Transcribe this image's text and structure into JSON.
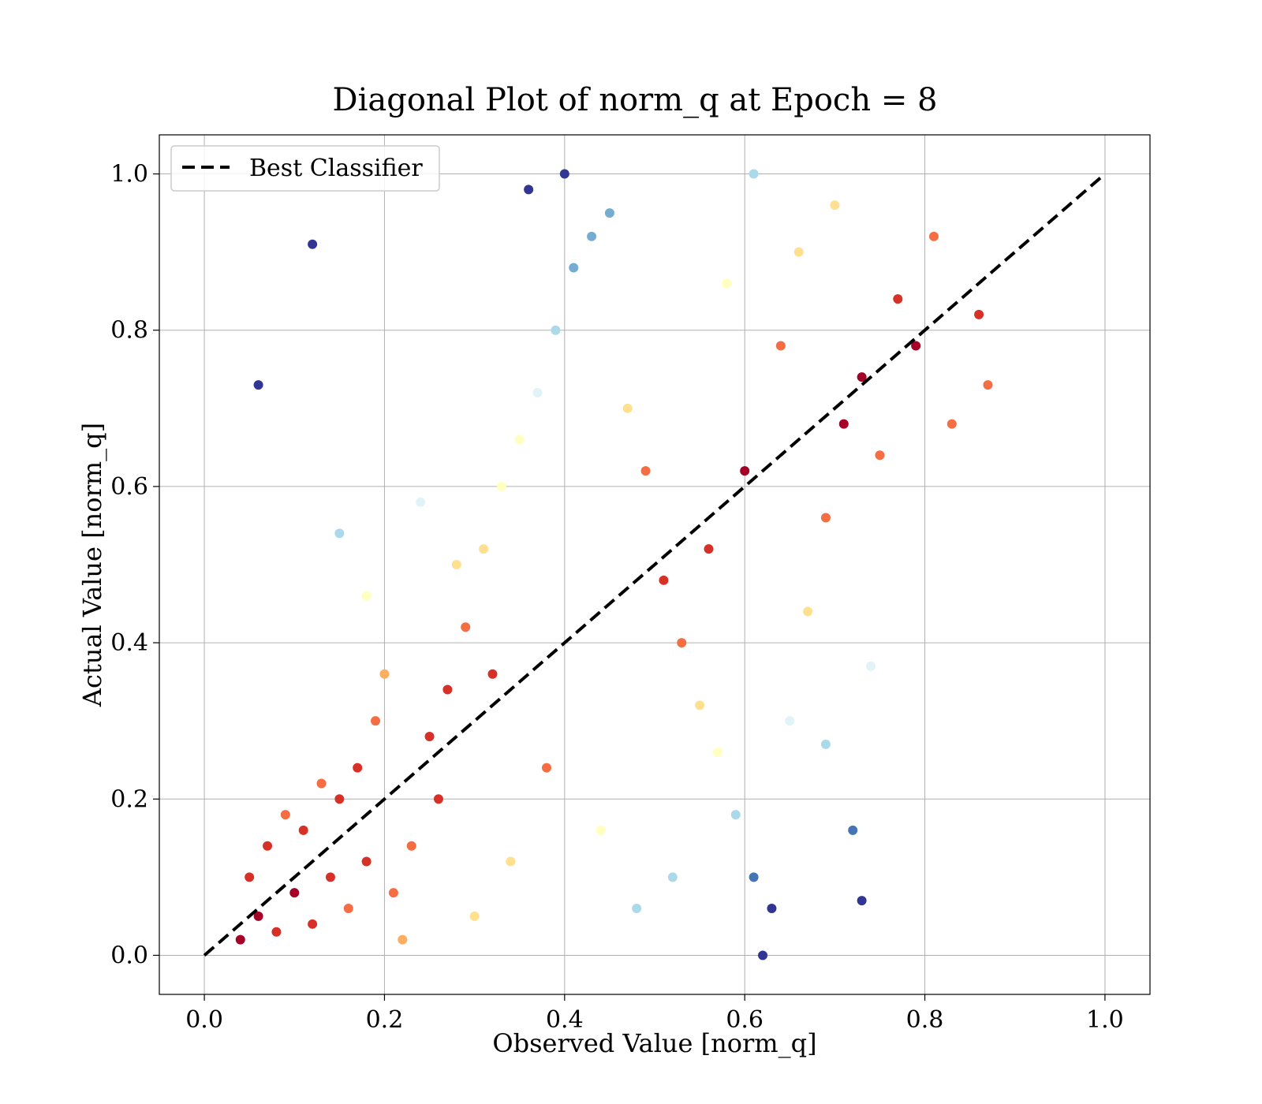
{
  "chart_data": {
    "type": "scatter",
    "title": "Diagonal Plot of norm_q at Epoch = 8",
    "xlabel": "Observed Value [norm_q]",
    "ylabel": "Actual Value [norm_q]",
    "xlim": [
      -0.05,
      1.05
    ],
    "ylim": [
      -0.05,
      1.05
    ],
    "xticks": [
      0.0,
      0.2,
      0.4,
      0.6,
      0.8,
      1.0
    ],
    "yticks": [
      0.0,
      0.2,
      0.4,
      0.6,
      0.8,
      1.0
    ],
    "xtick_labels": [
      "0.0",
      "0.2",
      "0.4",
      "0.6",
      "0.8",
      "1.0"
    ],
    "ytick_labels": [
      "0.0",
      "0.2",
      "0.4",
      "0.6",
      "0.8",
      "1.0"
    ],
    "grid": true,
    "legend_position": "top-left",
    "reference_line": {
      "name": "Best Classifier",
      "x": [
        0.0,
        1.0
      ],
      "y": [
        0.0,
        1.0
      ],
      "style": "dashed",
      "color": "#000000"
    },
    "colormap": [
      "#a50026",
      "#d73027",
      "#f46d43",
      "#fdae61",
      "#fee090",
      "#ffffbf",
      "#e0f3f8",
      "#abd9e9",
      "#74add1",
      "#4575b4",
      "#313695"
    ],
    "points": [
      {
        "x": 0.04,
        "y": 0.02
      },
      {
        "x": 0.06,
        "y": 0.05
      },
      {
        "x": 0.08,
        "y": 0.03
      },
      {
        "x": 0.1,
        "y": 0.08
      },
      {
        "x": 0.12,
        "y": 0.04
      },
      {
        "x": 0.14,
        "y": 0.1
      },
      {
        "x": 0.16,
        "y": 0.06
      },
      {
        "x": 0.18,
        "y": 0.12
      },
      {
        "x": 0.05,
        "y": 0.1
      },
      {
        "x": 0.07,
        "y": 0.14
      },
      {
        "x": 0.09,
        "y": 0.18
      },
      {
        "x": 0.11,
        "y": 0.16
      },
      {
        "x": 0.13,
        "y": 0.22
      },
      {
        "x": 0.15,
        "y": 0.2
      },
      {
        "x": 0.17,
        "y": 0.24
      },
      {
        "x": 0.19,
        "y": 0.3
      },
      {
        "x": 0.21,
        "y": 0.08
      },
      {
        "x": 0.23,
        "y": 0.14
      },
      {
        "x": 0.25,
        "y": 0.28
      },
      {
        "x": 0.27,
        "y": 0.34
      },
      {
        "x": 0.29,
        "y": 0.42
      },
      {
        "x": 0.31,
        "y": 0.52
      },
      {
        "x": 0.33,
        "y": 0.6
      },
      {
        "x": 0.35,
        "y": 0.66
      },
      {
        "x": 0.37,
        "y": 0.72
      },
      {
        "x": 0.39,
        "y": 0.8
      },
      {
        "x": 0.41,
        "y": 0.88
      },
      {
        "x": 0.43,
        "y": 0.92
      },
      {
        "x": 0.45,
        "y": 0.95
      },
      {
        "x": 0.47,
        "y": 0.7
      },
      {
        "x": 0.49,
        "y": 0.62
      },
      {
        "x": 0.51,
        "y": 0.48
      },
      {
        "x": 0.53,
        "y": 0.4
      },
      {
        "x": 0.55,
        "y": 0.32
      },
      {
        "x": 0.57,
        "y": 0.26
      },
      {
        "x": 0.59,
        "y": 0.18
      },
      {
        "x": 0.61,
        "y": 0.1
      },
      {
        "x": 0.63,
        "y": 0.06
      },
      {
        "x": 0.65,
        "y": 0.3
      },
      {
        "x": 0.67,
        "y": 0.44
      },
      {
        "x": 0.69,
        "y": 0.56
      },
      {
        "x": 0.71,
        "y": 0.68
      },
      {
        "x": 0.73,
        "y": 0.74
      },
      {
        "x": 0.75,
        "y": 0.64
      },
      {
        "x": 0.77,
        "y": 0.84
      },
      {
        "x": 0.79,
        "y": 0.78
      },
      {
        "x": 0.81,
        "y": 0.92
      },
      {
        "x": 0.83,
        "y": 0.68
      },
      {
        "x": 0.86,
        "y": 0.82
      },
      {
        "x": 0.87,
        "y": 0.73
      },
      {
        "x": 0.06,
        "y": 0.73
      },
      {
        "x": 0.12,
        "y": 0.91
      },
      {
        "x": 0.36,
        "y": 0.98
      },
      {
        "x": 0.4,
        "y": 1.0
      },
      {
        "x": 0.61,
        "y": 1.0
      },
      {
        "x": 0.74,
        "y": 0.37
      },
      {
        "x": 0.69,
        "y": 0.27
      },
      {
        "x": 0.72,
        "y": 0.16
      },
      {
        "x": 0.73,
        "y": 0.07
      },
      {
        "x": 0.62,
        "y": 0.0
      },
      {
        "x": 0.52,
        "y": 0.1
      },
      {
        "x": 0.22,
        "y": 0.02
      },
      {
        "x": 0.3,
        "y": 0.05
      },
      {
        "x": 0.34,
        "y": 0.12
      },
      {
        "x": 0.26,
        "y": 0.2
      },
      {
        "x": 0.2,
        "y": 0.36
      },
      {
        "x": 0.18,
        "y": 0.46
      },
      {
        "x": 0.15,
        "y": 0.54
      },
      {
        "x": 0.24,
        "y": 0.58
      },
      {
        "x": 0.28,
        "y": 0.5
      },
      {
        "x": 0.32,
        "y": 0.36
      },
      {
        "x": 0.38,
        "y": 0.24
      },
      {
        "x": 0.44,
        "y": 0.16
      },
      {
        "x": 0.48,
        "y": 0.06
      },
      {
        "x": 0.56,
        "y": 0.52
      },
      {
        "x": 0.6,
        "y": 0.62
      },
      {
        "x": 0.64,
        "y": 0.78
      },
      {
        "x": 0.66,
        "y": 0.9
      },
      {
        "x": 0.7,
        "y": 0.96
      },
      {
        "x": 0.58,
        "y": 0.86
      }
    ]
  }
}
